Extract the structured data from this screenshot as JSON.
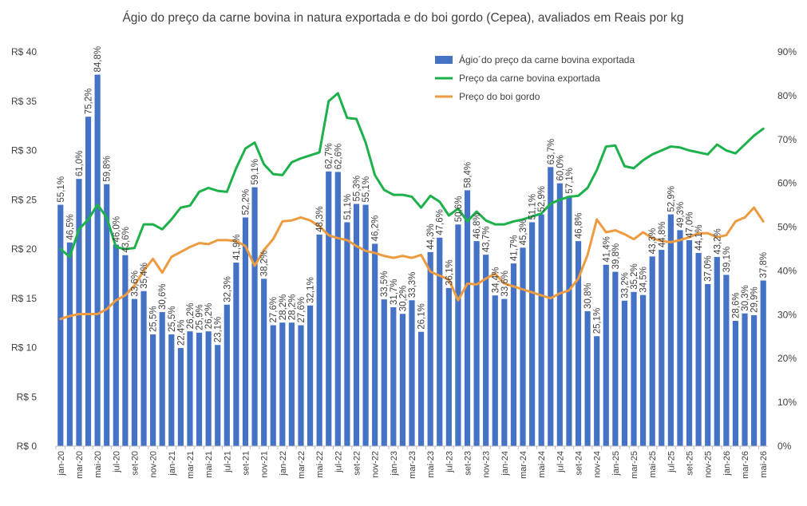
{
  "chart_data": {
    "type": "bar",
    "title": "Ágio do preço da carne bovina in natura exportada e do boi gordo (Cepea), avaliados em Reais por kg",
    "categories": [
      "jan-20",
      "fev-20",
      "mar-20",
      "abr-20",
      "mai-20",
      "jun-20",
      "jul-20",
      "ago-20",
      "set-20",
      "out-20",
      "nov-20",
      "dez-20",
      "jan-21",
      "fev-21",
      "mar-21",
      "abr-21",
      "mai-21",
      "jun-21",
      "jul-21",
      "ago-21",
      "set-21",
      "out-21",
      "nov-21",
      "dez-21",
      "jan-22",
      "fev-22",
      "mar-22",
      "abr-22",
      "mai-22",
      "jun-22",
      "jul-22",
      "ago-22",
      "set-22",
      "out-22",
      "nov-22",
      "dez-22",
      "jan-23",
      "fev-23",
      "mar-23",
      "abr-23",
      "mai-23",
      "jun-23",
      "jul-23",
      "ago-23",
      "set-23",
      "out-23",
      "nov-23",
      "dez-23",
      "jan-24",
      "fev-24",
      "mar-24",
      "abr-24",
      "mai-24",
      "jun-24",
      "jul-24",
      "ago-24",
      "set-24",
      "out-24",
      "nov-24",
      "dez-24",
      "jan-25",
      "fev-25",
      "mar-25",
      "abr-25",
      "mai-25",
      "jun-25",
      "jul-25",
      "ago-25",
      "set-25",
      "out-25",
      "nov-25",
      "dez-25",
      "jan-26",
      "fev-26",
      "mar-26",
      "abr-26",
      "mai-26"
    ],
    "x_tick_labels": [
      "jan-20",
      "mar-20",
      "mai-20",
      "jul-20",
      "set-20",
      "nov-20",
      "jan-21",
      "mar-21",
      "mai-21",
      "jul-21",
      "set-21",
      "nov-21",
      "jan-22",
      "mar-22",
      "mai-22",
      "jul-22",
      "set-22",
      "nov-22",
      "jan-23",
      "mar-23",
      "mai-23",
      "jul-23",
      "set-23",
      "nov-23",
      "jan-24",
      "mar-24",
      "mai-24",
      "jul-24",
      "set-24",
      "nov-24",
      "jan-25",
      "mar-25",
      "mai-25",
      "jul-25",
      "set-25",
      "nov-25",
      "jan-26",
      "mar-26",
      "mai-26"
    ],
    "series": [
      {
        "name": "Ágio´do preço da carne bovina exportada",
        "type": "bar",
        "axis": "right",
        "color": "#4472C4",
        "values": [
          55.1,
          46.5,
          61.0,
          75.2,
          84.8,
          59.8,
          46.0,
          43.6,
          33.6,
          35.4,
          25.5,
          30.6,
          25.5,
          22.4,
          26.2,
          25.9,
          26.2,
          23.1,
          32.3,
          41.9,
          52.2,
          59.1,
          38.2,
          27.6,
          28.2,
          28.2,
          27.6,
          32.1,
          48.3,
          62.7,
          62.6,
          51.1,
          55.3,
          55.1,
          46.2,
          33.5,
          31.7,
          30.2,
          33.3,
          26.1,
          44.3,
          47.6,
          36.1,
          50.6,
          58.4,
          46.8,
          43.7,
          34.4,
          33.6,
          41.7,
          45.3,
          51.1,
          52.9,
          63.7,
          60.0,
          57.1,
          46.8,
          30.8,
          25.1,
          41.4,
          39.8,
          33.2,
          35.2,
          34.5,
          43.3,
          44.8,
          52.9,
          49.3,
          47.0,
          44.1,
          37.0,
          43.2,
          39.1,
          28.6,
          30.3,
          29.9,
          37.8
        ],
        "labels": [
          "55,1%",
          "46,5%",
          "61,0%",
          "75,2%",
          "84,8%",
          "59,8%",
          "46,0%",
          "43,6%",
          "33,6%",
          "35,4%",
          "25,5%",
          "30,6%",
          "25,5%",
          "22,4%",
          "26,2%",
          "25,9%",
          "26,2%",
          "23,1%",
          "32,3%",
          "41,9%",
          "52,2%",
          "59,1%",
          "38,2%",
          "27,6%",
          "28,2%",
          "28,2%",
          "27,6%",
          "32,1%",
          "48,3%",
          "62,7%",
          "62,6%",
          "51,1%",
          "55,3%",
          "55,1%",
          "46,2%",
          "33,5%",
          "31,7%",
          "30,2%",
          "33,3%",
          "26,1%",
          "44,3%",
          "47,6%",
          "36,1%",
          "50,6%",
          "58,4%",
          "46,8%",
          "43,7%",
          "34,4%",
          "33,6%",
          "41,7%",
          "45,3%",
          "51,1%",
          "52,9%",
          "63,7%",
          "60,0%",
          "57,1%",
          "46,8%",
          "30,8%",
          "25,1%",
          "41,4%",
          "39,8%",
          "33,2%",
          "35,2%",
          "34,5%",
          "43,3%",
          "44,8%",
          "52,9%",
          "49,3%",
          "47,0%",
          "44,1%",
          "37,0%",
          "43,2%",
          "39,1%",
          "28,6%",
          "30,3%",
          "29,9%",
          "37,8%"
        ]
      },
      {
        "name": "Preço da carne bovina exportada",
        "type": "line",
        "axis": "left",
        "color": "#1DB14B",
        "values": [
          20.0,
          19.2,
          22.0,
          23.0,
          24.5,
          23.2,
          20.2,
          20.0,
          20.1,
          22.5,
          22.5,
          22.0,
          23.0,
          24.2,
          24.4,
          25.8,
          26.2,
          25.9,
          25.8,
          28.2,
          30.2,
          30.8,
          28.6,
          27.6,
          27.5,
          28.8,
          29.2,
          29.5,
          29.8,
          35.0,
          35.8,
          33.3,
          33.2,
          30.8,
          27.5,
          26.0,
          25.5,
          25.5,
          25.3,
          24.2,
          25.4,
          24.8,
          23.4,
          24.1,
          22.8,
          23.8,
          22.9,
          22.5,
          22.5,
          22.8,
          23.0,
          23.3,
          23.6,
          24.6,
          25.0,
          25.3,
          25.4,
          26.2,
          28.0,
          30.4,
          30.5,
          28.4,
          28.2,
          29.0,
          29.6,
          30.0,
          30.4,
          30.3,
          30.0,
          29.8,
          29.6,
          30.6,
          30.0,
          29.7,
          30.6,
          31.5,
          32.2
        ]
      },
      {
        "name": "Preço do boi gordo",
        "type": "line",
        "axis": "left",
        "color": "#ED9B40",
        "values": [
          12.9,
          13.2,
          13.4,
          13.4,
          13.4,
          13.9,
          14.8,
          15.3,
          16.3,
          17.8,
          19.0,
          17.6,
          19.2,
          19.7,
          20.2,
          20.6,
          20.5,
          20.9,
          20.9,
          20.8,
          20.3,
          18.3,
          19.9,
          21.0,
          22.8,
          22.9,
          23.2,
          22.9,
          22.3,
          21.4,
          21.1,
          20.9,
          20.3,
          19.8,
          19.6,
          19.3,
          19.1,
          19.3,
          19.1,
          19.4,
          17.7,
          17.3,
          16.9,
          14.8,
          16.5,
          16.4,
          17.0,
          17.5,
          16.5,
          16.2,
          15.9,
          15.6,
          15.3,
          15.0,
          15.5,
          15.8,
          17.0,
          19.4,
          23.0,
          21.7,
          21.9,
          21.5,
          21.0,
          21.7,
          21.1,
          20.8,
          20.7,
          20.9,
          21.2,
          21.6,
          21.6,
          21.2,
          21.4,
          22.8,
          23.2,
          24.2,
          22.8
        ]
      }
    ],
    "y_left": {
      "ylim": [
        0,
        40
      ],
      "ticks": [
        0,
        5,
        10,
        15,
        20,
        25,
        30,
        35,
        40
      ],
      "tick_labels": [
        "R$ 0",
        "R$ 5",
        "R$ 10",
        "R$ 15",
        "R$ 20",
        "R$ 25",
        "R$ 30",
        "R$ 35",
        "R$ 40"
      ]
    },
    "y_right": {
      "ylim": [
        0,
        90
      ],
      "ticks": [
        0,
        10,
        20,
        30,
        40,
        50,
        60,
        70,
        80,
        90
      ],
      "tick_labels": [
        "0%",
        "10%",
        "20%",
        "30%",
        "40%",
        "50%",
        "60%",
        "70%",
        "80%",
        "90%"
      ]
    },
    "grid": false,
    "legend_position": "top-center"
  }
}
